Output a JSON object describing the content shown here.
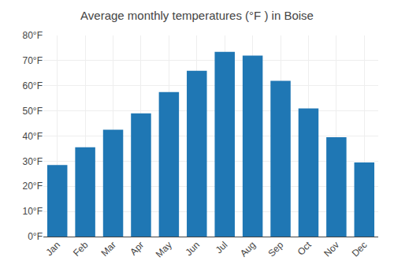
{
  "chart_data": {
    "type": "bar",
    "title": "Average monthly temperatures (°F ) in Boise",
    "categories": [
      "Jan",
      "Feb",
      "Mar",
      "Apr",
      "May",
      "Jun",
      "Jul",
      "Aug",
      "Sep",
      "Oct",
      "Nov",
      "Dec"
    ],
    "values": [
      28.5,
      35.5,
      42.5,
      49.0,
      57.5,
      66.0,
      73.5,
      72.0,
      62.0,
      51.0,
      39.5,
      29.5
    ],
    "ylim": [
      0,
      80
    ],
    "yticks": [
      {
        "value": 0,
        "label": "0°F"
      },
      {
        "value": 10,
        "label": "10°F"
      },
      {
        "value": 20,
        "label": "20°F"
      },
      {
        "value": 30,
        "label": "30°F"
      },
      {
        "value": 40,
        "label": "40°F"
      },
      {
        "value": 50,
        "label": "50°F"
      },
      {
        "value": 60,
        "label": "60°F"
      },
      {
        "value": 70,
        "label": "70°F"
      },
      {
        "value": 80,
        "label": "80°F"
      }
    ],
    "grid": true
  }
}
